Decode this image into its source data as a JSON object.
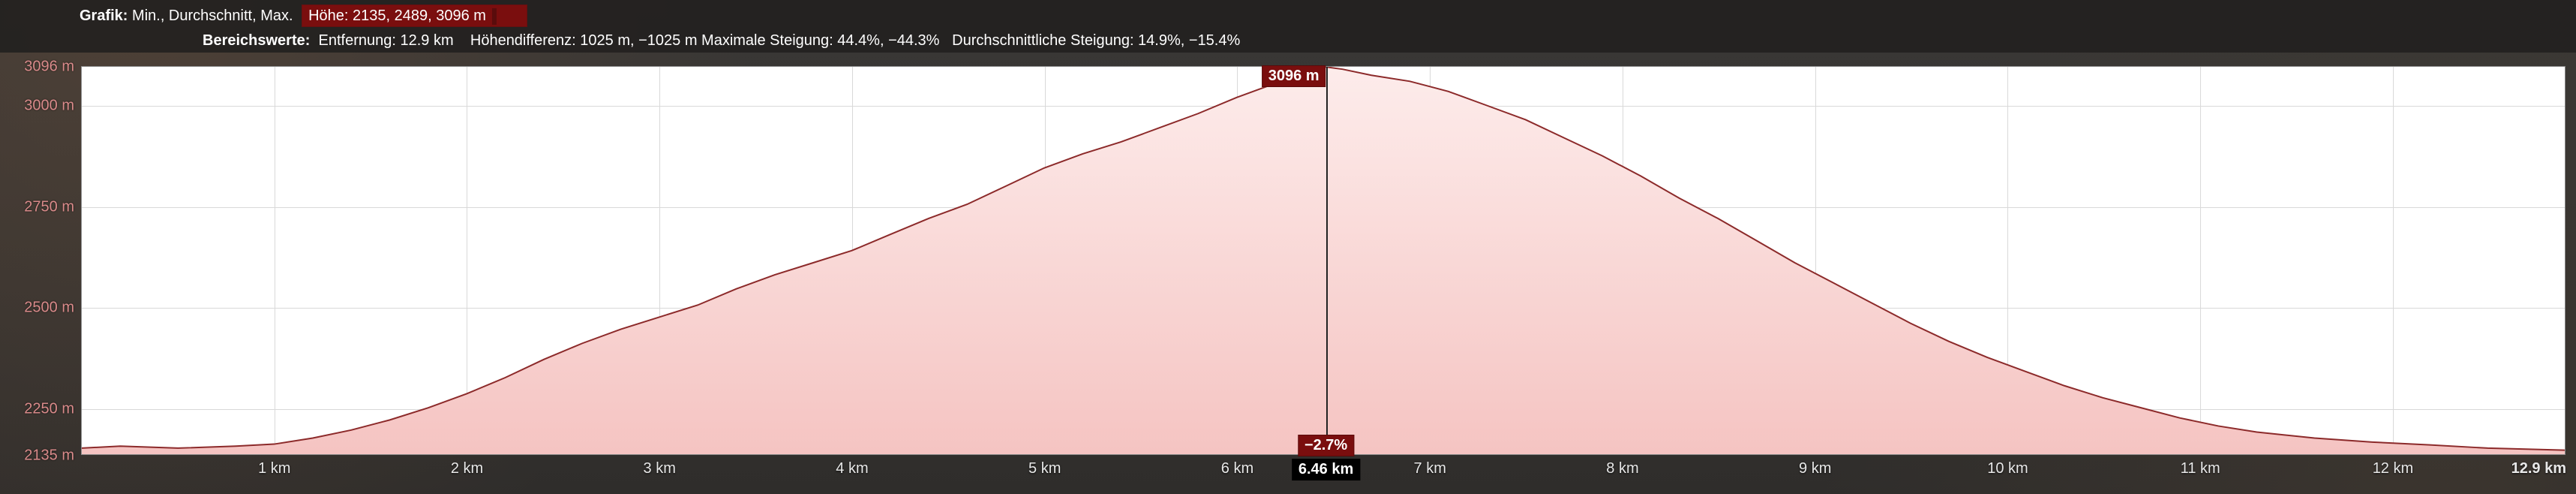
{
  "header": {
    "grafik_label": "Grafik:",
    "grafik_value": "Min., Durchschnitt, Max.",
    "hohe_label_and_value": "Höhe: 2135, 2489, 3096 m",
    "bereich_label": "Bereichswerte:",
    "entfernung": "Entfernung: 12.9 km",
    "hoehendiff": "Höhendifferenz: 1025 m, −1025 m",
    "max_steigung": "Maximale Steigung: 44.4%, −44.3%",
    "durch_steigung": "Durchschnittliche Steigung: 14.9%, −15.4%"
  },
  "chart": {
    "type": "area",
    "x_unit": "km",
    "y_unit": "m",
    "xlim": [
      0,
      12.9
    ],
    "ylim": [
      2135,
      3096
    ],
    "y_ticks": [
      2135,
      2250,
      2500,
      2750,
      3000,
      3096
    ],
    "x_ticks": [
      1,
      2,
      3,
      4,
      5,
      6,
      7,
      8,
      9,
      10,
      11,
      12,
      12.9
    ],
    "x_tick_labels": [
      "1 km",
      "2 km",
      "3 km",
      "4 km",
      "5 km",
      "6 km",
      "7 km",
      "8 km",
      "9 km",
      "10 km",
      "11 km",
      "12 km",
      "12.9 km"
    ],
    "y_tick_labels": [
      "2135 m",
      "2250 m",
      "2500 m",
      "2750 m",
      "3000 m",
      "3096 m"
    ],
    "fill_top_color": "#fdeceb",
    "fill_bottom_color": "#f5c4c2",
    "line_color": "#8c2a2a",
    "line_width": 2,
    "grid_color": "#d9d9d9",
    "background_color": "#ffffff",
    "axis_label_color": "#d98a8a",
    "x_axis_label_color": "#e8e8e8",
    "label_fontsize": 20,
    "cursor": {
      "x_km": 6.46,
      "elevation_m": 3096,
      "slope_pct": -2.7,
      "peak_label": "3096 m",
      "slope_label": "−2.7%",
      "x_label": "6.46 km"
    },
    "profile_points": [
      [
        0.0,
        2150
      ],
      [
        0.2,
        2155
      ],
      [
        0.5,
        2150
      ],
      [
        0.8,
        2155
      ],
      [
        1.0,
        2160
      ],
      [
        1.2,
        2175
      ],
      [
        1.4,
        2195
      ],
      [
        1.6,
        2220
      ],
      [
        1.8,
        2250
      ],
      [
        2.0,
        2285
      ],
      [
        2.2,
        2325
      ],
      [
        2.4,
        2370
      ],
      [
        2.6,
        2410
      ],
      [
        2.8,
        2445
      ],
      [
        3.0,
        2475
      ],
      [
        3.2,
        2505
      ],
      [
        3.4,
        2545
      ],
      [
        3.6,
        2580
      ],
      [
        3.8,
        2610
      ],
      [
        4.0,
        2640
      ],
      [
        4.2,
        2680
      ],
      [
        4.4,
        2720
      ],
      [
        4.6,
        2755
      ],
      [
        4.8,
        2800
      ],
      [
        5.0,
        2845
      ],
      [
        5.2,
        2880
      ],
      [
        5.4,
        2910
      ],
      [
        5.6,
        2945
      ],
      [
        5.8,
        2980
      ],
      [
        6.0,
        3020
      ],
      [
        6.2,
        3055
      ],
      [
        6.4,
        3085
      ],
      [
        6.46,
        3096
      ],
      [
        6.55,
        3090
      ],
      [
        6.7,
        3075
      ],
      [
        6.9,
        3060
      ],
      [
        7.1,
        3035
      ],
      [
        7.3,
        3000
      ],
      [
        7.5,
        2965
      ],
      [
        7.7,
        2920
      ],
      [
        7.9,
        2875
      ],
      [
        8.1,
        2825
      ],
      [
        8.3,
        2770
      ],
      [
        8.5,
        2720
      ],
      [
        8.7,
        2665
      ],
      [
        8.9,
        2610
      ],
      [
        9.1,
        2560
      ],
      [
        9.3,
        2510
      ],
      [
        9.5,
        2460
      ],
      [
        9.7,
        2415
      ],
      [
        9.9,
        2375
      ],
      [
        10.1,
        2340
      ],
      [
        10.3,
        2305
      ],
      [
        10.5,
        2275
      ],
      [
        10.7,
        2250
      ],
      [
        10.9,
        2225
      ],
      [
        11.1,
        2205
      ],
      [
        11.3,
        2190
      ],
      [
        11.6,
        2175
      ],
      [
        11.9,
        2165
      ],
      [
        12.2,
        2158
      ],
      [
        12.5,
        2150
      ],
      [
        12.9,
        2145
      ]
    ]
  }
}
